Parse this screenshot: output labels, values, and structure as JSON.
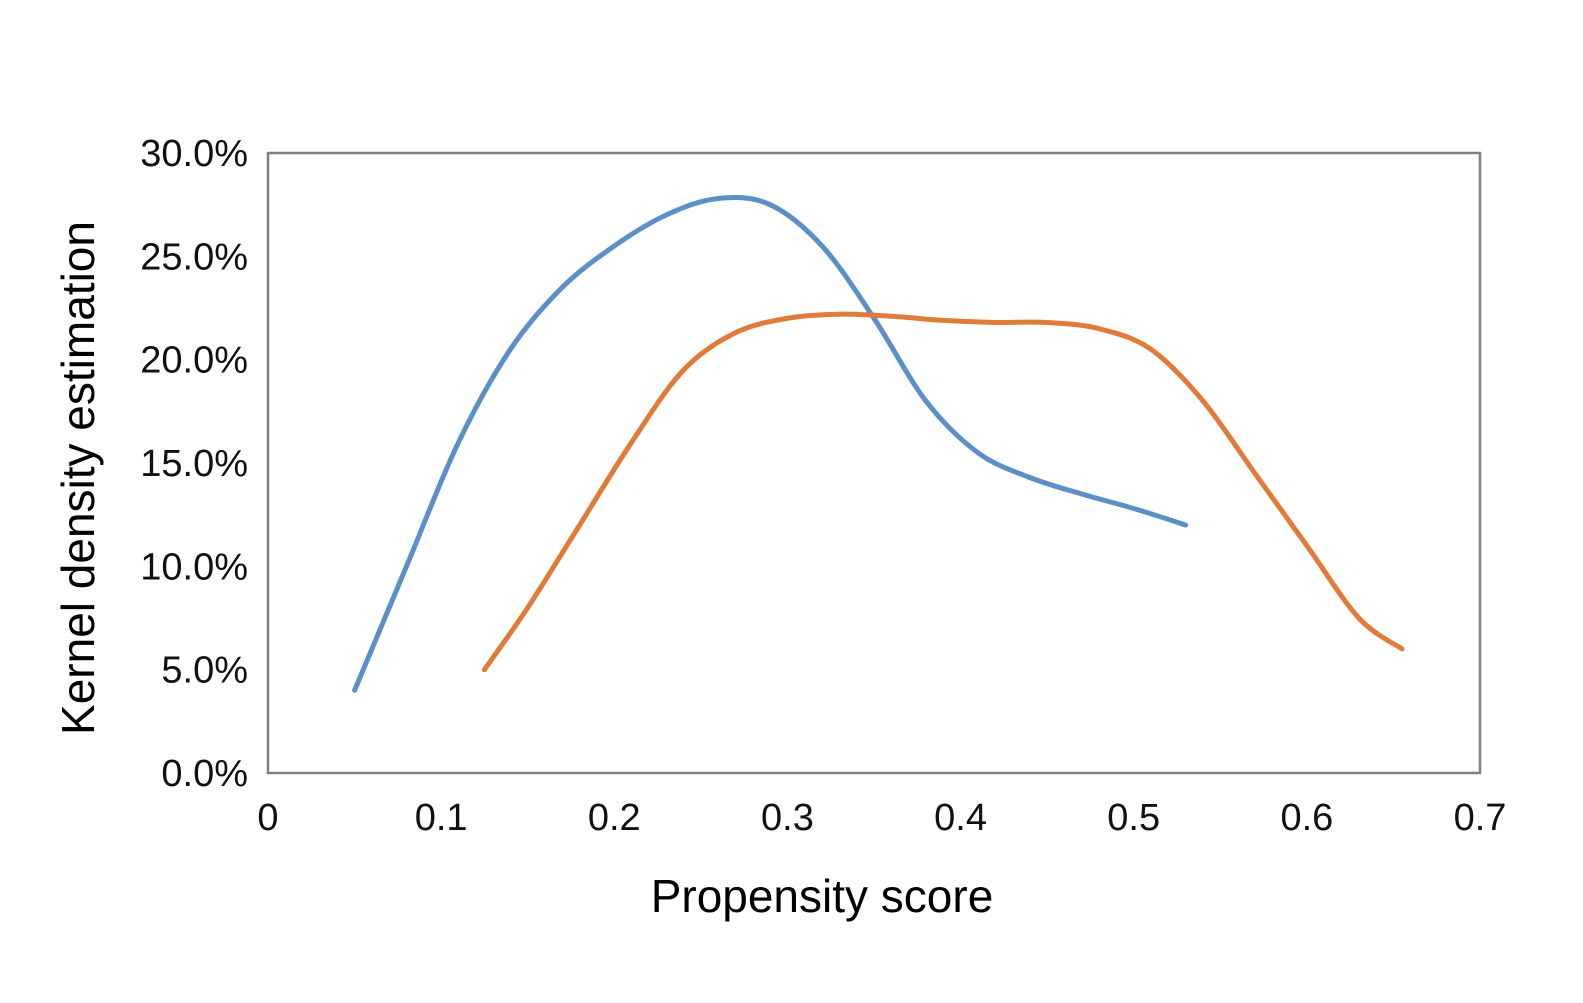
{
  "chart_data": {
    "type": "line",
    "title": "",
    "xlabel": "Propensity score",
    "ylabel": "Kernel density estimation",
    "xlim": [
      0,
      0.7
    ],
    "ylim": [
      0,
      0.3
    ],
    "x_ticks": [
      "0",
      "0.1",
      "0.2",
      "0.3",
      "0.4",
      "0.5",
      "0.6",
      "0.7"
    ],
    "y_ticks": [
      "0.0%",
      "5.0%",
      "10.0%",
      "15.0%",
      "20.0%",
      "25.0%",
      "30.0%"
    ],
    "grid": false,
    "legend": "none",
    "series": [
      {
        "color": "#5b8fc7",
        "x": [
          0.05,
          0.08,
          0.11,
          0.14,
          0.17,
          0.2,
          0.23,
          0.26,
          0.29,
          0.32,
          0.35,
          0.38,
          0.41,
          0.44,
          0.47,
          0.5,
          0.53
        ],
        "y": [
          0.04,
          0.1,
          0.16,
          0.205,
          0.235,
          0.255,
          0.27,
          0.278,
          0.275,
          0.255,
          0.22,
          0.18,
          0.155,
          0.143,
          0.135,
          0.128,
          0.12
        ]
      },
      {
        "color": "#e07b39",
        "x": [
          0.125,
          0.15,
          0.18,
          0.21,
          0.24,
          0.27,
          0.3,
          0.33,
          0.36,
          0.39,
          0.42,
          0.45,
          0.48,
          0.51,
          0.54,
          0.57,
          0.6,
          0.63,
          0.655
        ],
        "y": [
          0.05,
          0.08,
          0.12,
          0.16,
          0.195,
          0.213,
          0.22,
          0.222,
          0.221,
          0.219,
          0.218,
          0.218,
          0.215,
          0.205,
          0.18,
          0.145,
          0.11,
          0.075,
          0.06
        ]
      }
    ]
  }
}
